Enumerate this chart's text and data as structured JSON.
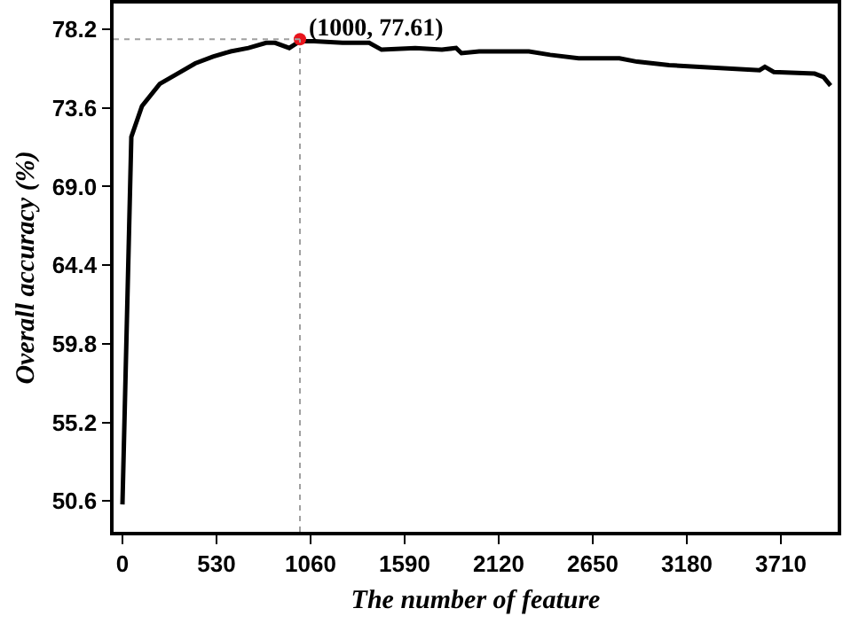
{
  "chart_data": {
    "type": "line",
    "xlabel": "The number of feature",
    "ylabel": "Overall accuracy (%)",
    "xlim": [
      -50,
      4030
    ],
    "ylim": [
      48.8,
      79.7
    ],
    "xticks": [
      0,
      530,
      1060,
      1590,
      2120,
      2650,
      3180,
      3710
    ],
    "yticks": [
      {
        "value": 50.6,
        "label": "50.6"
      },
      {
        "value": 55.2,
        "label": "55.2"
      },
      {
        "value": 59.8,
        "label": "59.8"
      },
      {
        "value": 64.4,
        "label": "64.4"
      },
      {
        "value": 69.0,
        "label": "69.0"
      },
      {
        "value": 73.6,
        "label": "73.6"
      },
      {
        "value": 78.2,
        "label": "78.2"
      }
    ],
    "grid": false,
    "marker": "none",
    "line_style": "solid",
    "series": [
      {
        "color": "#000000",
        "x": [
          0,
          50,
          110,
          210,
          310,
          410,
          510,
          610,
          710,
          810,
          860,
          940,
          1000,
          1080,
          1240,
          1390,
          1460,
          1650,
          1800,
          1880,
          1910,
          2010,
          2060,
          2290,
          2410,
          2570,
          2800,
          2900,
          3080,
          3230,
          3590,
          3620,
          3670,
          3900,
          3950,
          3990
        ],
        "values": [
          50.4,
          71.9,
          73.7,
          75.0,
          75.6,
          76.2,
          76.6,
          76.9,
          77.1,
          77.4,
          77.4,
          77.1,
          77.5,
          77.5,
          77.4,
          77.4,
          77.0,
          77.1,
          77.0,
          77.1,
          76.8,
          76.9,
          76.9,
          76.9,
          76.7,
          76.5,
          76.5,
          76.3,
          76.1,
          76.0,
          75.8,
          76.0,
          75.7,
          75.6,
          75.4,
          74.9
        ]
      },
      {
        "type": "scatter",
        "color": "#e8141c",
        "marker": "circle",
        "x": [
          1000
        ],
        "values": [
          77.61
        ]
      }
    ],
    "ref_lines": [
      {
        "axis": "x",
        "value": 1000,
        "color": "#a0a0a0",
        "line_style": "dotted"
      },
      {
        "axis": "y",
        "value": 77.61,
        "color": "#a0a0a0",
        "line_style": "dotted"
      }
    ],
    "annotations": [
      {
        "text": "(1000, 77.61)",
        "x": 1000,
        "y": 77.61
      }
    ]
  }
}
